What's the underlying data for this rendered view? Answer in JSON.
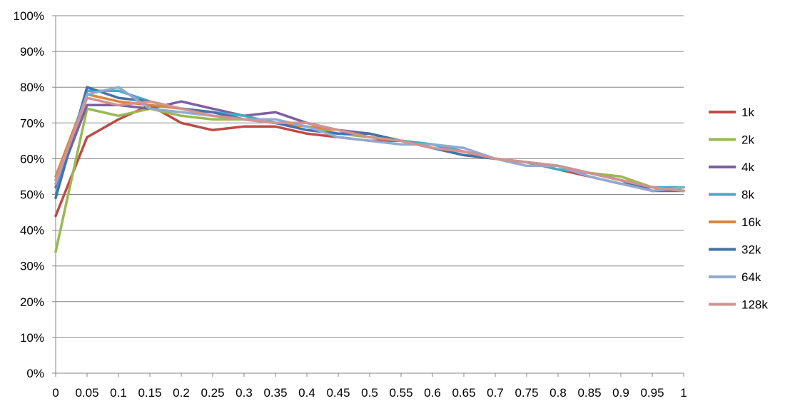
{
  "chart_data": {
    "type": "line",
    "title": "",
    "xlabel": "",
    "ylabel": "",
    "xlim": [
      0,
      1
    ],
    "ylim": [
      0,
      1
    ],
    "grid": "horizontal",
    "legend_position": "right",
    "y_ticks": [
      "0%",
      "10%",
      "20%",
      "30%",
      "40%",
      "50%",
      "60%",
      "70%",
      "80%",
      "90%",
      "100%"
    ],
    "x_ticks": [
      "0",
      "0.05",
      "0.1",
      "0.15",
      "0.2",
      "0.25",
      "0.3",
      "0.35",
      "0.4",
      "0.45",
      "0.5",
      "0.55",
      "0.6",
      "0.65",
      "0.7",
      "0.75",
      "0.8",
      "0.85",
      "0.9",
      "0.95",
      "1"
    ],
    "x": [
      0,
      0.05,
      0.1,
      0.15,
      0.2,
      0.25,
      0.3,
      0.35,
      0.4,
      0.45,
      0.5,
      0.55,
      0.6,
      0.65,
      0.7,
      0.75,
      0.8,
      0.85,
      0.9,
      0.95,
      1
    ],
    "series": [
      {
        "name": "1k",
        "color": "#BE4B48",
        "values": [
          0.44,
          0.66,
          0.71,
          0.75,
          0.7,
          0.68,
          0.69,
          0.69,
          0.67,
          0.66,
          0.65,
          0.65,
          0.63,
          0.61,
          0.6,
          0.59,
          0.57,
          0.55,
          0.53,
          0.52,
          0.51
        ]
      },
      {
        "name": "2k",
        "color": "#98B954",
        "values": [
          0.34,
          0.74,
          0.72,
          0.74,
          0.72,
          0.71,
          0.71,
          0.7,
          0.69,
          0.67,
          0.66,
          0.65,
          0.64,
          0.62,
          0.6,
          0.59,
          0.58,
          0.56,
          0.55,
          0.52,
          0.51
        ]
      },
      {
        "name": "4k",
        "color": "#7D60A0",
        "values": [
          0.52,
          0.75,
          0.75,
          0.74,
          0.76,
          0.74,
          0.72,
          0.73,
          0.7,
          0.68,
          0.67,
          0.65,
          0.64,
          0.62,
          0.6,
          0.59,
          0.58,
          0.56,
          0.54,
          0.51,
          0.51
        ]
      },
      {
        "name": "8k",
        "color": "#46AAC5",
        "values": [
          0.5,
          0.79,
          0.79,
          0.76,
          0.74,
          0.73,
          0.72,
          0.7,
          0.7,
          0.68,
          0.66,
          0.65,
          0.64,
          0.62,
          0.6,
          0.59,
          0.57,
          0.56,
          0.54,
          0.52,
          0.52
        ]
      },
      {
        "name": "16k",
        "color": "#DB843D",
        "values": [
          0.55,
          0.78,
          0.76,
          0.75,
          0.74,
          0.73,
          0.71,
          0.7,
          0.69,
          0.68,
          0.66,
          0.65,
          0.63,
          0.62,
          0.6,
          0.59,
          0.58,
          0.56,
          0.54,
          0.52,
          0.51
        ]
      },
      {
        "name": "32k",
        "color": "#4572A7",
        "values": [
          0.49,
          0.8,
          0.77,
          0.76,
          0.74,
          0.73,
          0.71,
          0.7,
          0.68,
          0.67,
          0.67,
          0.65,
          0.63,
          0.61,
          0.6,
          0.59,
          0.58,
          0.56,
          0.54,
          0.51,
          0.52
        ]
      },
      {
        "name": "64k",
        "color": "#93A9CF",
        "values": [
          0.53,
          0.78,
          0.8,
          0.74,
          0.73,
          0.72,
          0.71,
          0.71,
          0.69,
          0.66,
          0.65,
          0.64,
          0.64,
          0.63,
          0.6,
          0.58,
          0.58,
          0.55,
          0.53,
          0.51,
          0.52
        ]
      },
      {
        "name": "128k",
        "color": "#D19392",
        "values": [
          0.54,
          0.77,
          0.75,
          0.76,
          0.74,
          0.72,
          0.71,
          0.7,
          0.7,
          0.68,
          0.66,
          0.65,
          0.63,
          0.62,
          0.6,
          0.59,
          0.58,
          0.56,
          0.54,
          0.52,
          0.51
        ]
      }
    ]
  }
}
